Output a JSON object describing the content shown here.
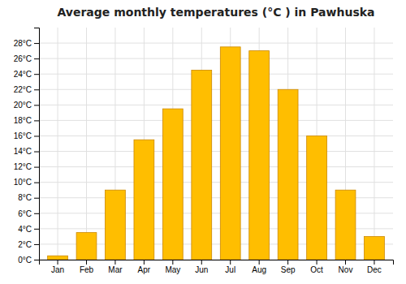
{
  "chart_data": {
    "type": "bar",
    "title": "Average monthly temperatures (°C ) in Pawhuska",
    "categories": [
      "Jan",
      "Feb",
      "Mar",
      "Apr",
      "May",
      "Jun",
      "Jul",
      "Aug",
      "Sep",
      "Oct",
      "Nov",
      "Dec"
    ],
    "values": [
      0.5,
      3.5,
      9.0,
      15.5,
      19.5,
      24.5,
      27.5,
      27.0,
      22.0,
      16.0,
      9.0,
      3.0
    ],
    "color": "#FFBE00",
    "ylim": [
      0,
      30
    ],
    "yticks": [
      {
        "value": 0,
        "label": "0°C"
      },
      {
        "value": 2,
        "label": "2°C"
      },
      {
        "value": 4,
        "label": "4°C"
      },
      {
        "value": 6,
        "label": "6°C"
      },
      {
        "value": 8,
        "label": "8°C"
      },
      {
        "value": 10,
        "label": "10°C"
      },
      {
        "value": 12,
        "label": "12°C"
      },
      {
        "value": 14,
        "label": "14°C"
      },
      {
        "value": 16,
        "label": "16°C"
      },
      {
        "value": 18,
        "label": "18°C"
      },
      {
        "value": 20,
        "label": "20°C"
      },
      {
        "value": 22,
        "label": "22°C"
      },
      {
        "value": 24,
        "label": "24°C"
      },
      {
        "value": 26,
        "label": "26°C"
      },
      {
        "value": 28,
        "label": "28°C"
      }
    ],
    "grid": true
  }
}
